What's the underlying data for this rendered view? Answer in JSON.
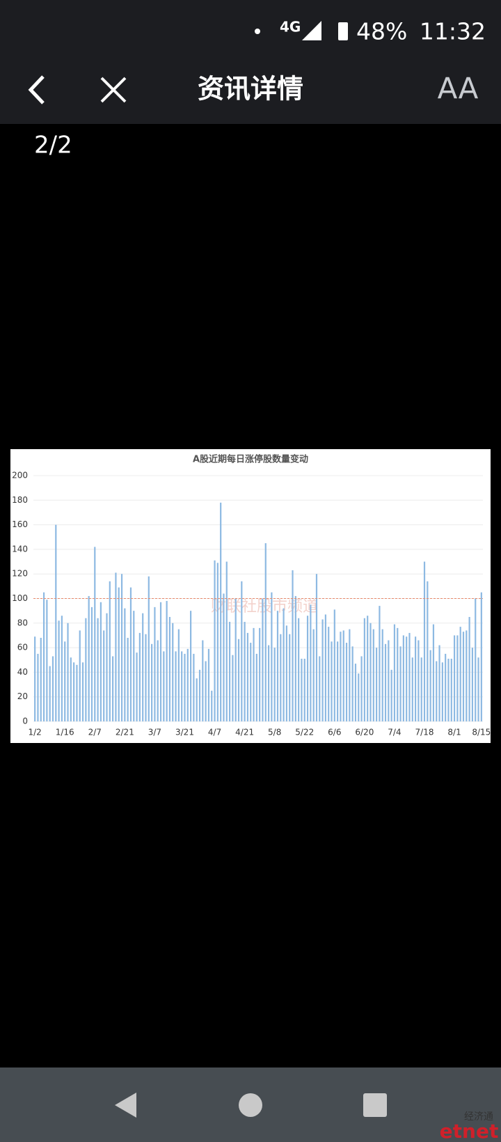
{
  "status_bar": {
    "network": "4G",
    "battery": "48%",
    "time": "11:32"
  },
  "header": {
    "title": "资讯详情",
    "font_button": "AA"
  },
  "page_counter": "2/2",
  "chart_data": {
    "type": "bar",
    "title": "A股近期每日涨停股数量变动",
    "watermark": "财联社股市频道",
    "categories": [
      "1/2",
      null,
      null,
      null,
      null,
      null,
      null,
      null,
      null,
      null,
      "1/16",
      null,
      null,
      null,
      null,
      null,
      null,
      null,
      null,
      null,
      "2/7",
      null,
      null,
      null,
      null,
      null,
      null,
      null,
      null,
      null,
      "2/21",
      null,
      null,
      null,
      null,
      null,
      null,
      null,
      null,
      null,
      "3/7",
      null,
      null,
      null,
      null,
      null,
      null,
      null,
      null,
      null,
      "3/21",
      null,
      null,
      null,
      null,
      null,
      null,
      null,
      null,
      null,
      "4/7",
      null,
      null,
      null,
      null,
      null,
      null,
      null,
      null,
      null,
      "4/21",
      null,
      null,
      null,
      null,
      null,
      null,
      null,
      null,
      null,
      "5/8",
      null,
      null,
      null,
      null,
      null,
      null,
      null,
      null,
      null,
      "5/22",
      null,
      null,
      null,
      null,
      null,
      null,
      null,
      null,
      null,
      "6/6",
      null,
      null,
      null,
      null,
      null,
      null,
      null,
      null,
      null,
      "6/20",
      null,
      null,
      null,
      null,
      null,
      null,
      null,
      null,
      null,
      "7/4",
      null,
      null,
      null,
      null,
      null,
      null,
      null,
      null,
      null,
      "7/18",
      null,
      null,
      null,
      null,
      null,
      null,
      null,
      null,
      null,
      "8/1",
      null,
      null,
      null,
      null,
      null,
      null,
      null,
      null,
      "8/15"
    ],
    "values": [
      69,
      55,
      68,
      105,
      99,
      45,
      53,
      160,
      82,
      86,
      65,
      80,
      52,
      48,
      46,
      74,
      48,
      84,
      102,
      93,
      142,
      84,
      97,
      74,
      88,
      114,
      53,
      121,
      109,
      120,
      92,
      68,
      109,
      90,
      56,
      72,
      88,
      71,
      118,
      63,
      93,
      66,
      97,
      57,
      98,
      85,
      80,
      57,
      75,
      57,
      55,
      59,
      90,
      55,
      35,
      42,
      66,
      49,
      59,
      25,
      131,
      129,
      178,
      104,
      130,
      81,
      54,
      100,
      67,
      114,
      81,
      72,
      64,
      76,
      55,
      76,
      100,
      145,
      62,
      105,
      60,
      90,
      71,
      92,
      78,
      71,
      123,
      102,
      84,
      51,
      51,
      86,
      95,
      75,
      120,
      53,
      83,
      87,
      77,
      65,
      91,
      65,
      73,
      74,
      64,
      75,
      61,
      47,
      39,
      53,
      84,
      86,
      80,
      75,
      60,
      94,
      75,
      63,
      66,
      42,
      79,
      76,
      61,
      70,
      69,
      72,
      52,
      69,
      66,
      52,
      130,
      114,
      58,
      79,
      49,
      62,
      48,
      55,
      51,
      51,
      70,
      70,
      77,
      73,
      74,
      85,
      60,
      100,
      52,
      105
    ],
    "color": "#8db9e2",
    "ylim": [
      0,
      200
    ],
    "yticks": [
      0,
      20,
      40,
      60,
      80,
      100,
      120,
      140,
      160,
      180,
      200
    ],
    "grid": true,
    "reference_line": 100,
    "reference_color": "#e8896a"
  },
  "footer_watermark": {
    "chinese": "经济通",
    "brand": "etnet"
  }
}
